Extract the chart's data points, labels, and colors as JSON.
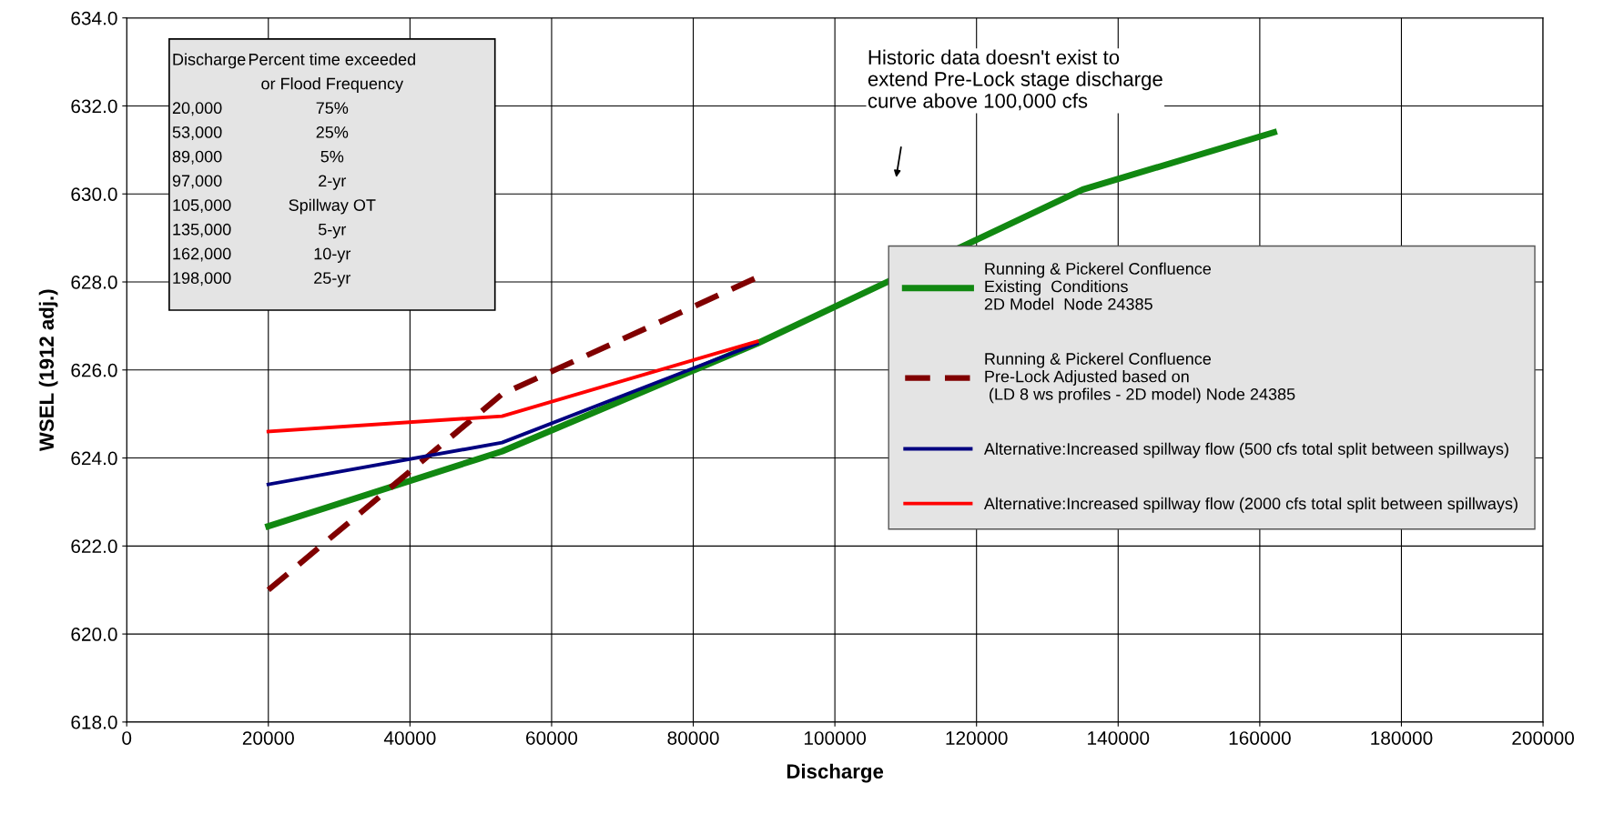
{
  "chart_data": {
    "type": "line",
    "xlabel": "Discharge",
    "ylabel": "WSEL (1912 adj.)",
    "xlim": [
      0,
      200000
    ],
    "xticks": [
      0,
      20000,
      40000,
      60000,
      80000,
      100000,
      120000,
      140000,
      160000,
      180000,
      200000
    ],
    "ylim": [
      618,
      634
    ],
    "yticks": [
      {
        "value": 618,
        "label": "618.0"
      },
      {
        "value": 620,
        "label": "620.0"
      },
      {
        "value": 622,
        "label": "622.0"
      },
      {
        "value": 624,
        "label": "624.0"
      },
      {
        "value": 626,
        "label": "626.0"
      },
      {
        "value": 628,
        "label": "628.0"
      },
      {
        "value": 630,
        "label": "630.0"
      },
      {
        "value": 632,
        "label": "632.0"
      },
      {
        "value": 634,
        "label": "634.0"
      }
    ],
    "grid": true,
    "legend": "right",
    "marker": "none",
    "series": [
      {
        "name": "Running & Pickerel Confluence\nExisting  Conditions\n2D Model  Node 24385",
        "color": "#118811",
        "line_style": "solid",
        "x": [
          20000,
          53000,
          89000,
          135000,
          162000
        ],
        "values": [
          622.45,
          624.15,
          626.6,
          630.1,
          631.4
        ]
      },
      {
        "name": "Running & Pickerel Confluence\nPre-Lock Adjusted based on\n (LD 8 ws profiles - 2D model) Node 24385",
        "color": "#800000",
        "line_style": "dashed",
        "x": [
          20000,
          53000,
          89000
        ],
        "values": [
          621.0,
          625.45,
          628.1
        ]
      },
      {
        "name": "Alternative:Increased spillway flow (500 cfs total split between spillways)",
        "color": "#000080",
        "line_style": "solid",
        "x": [
          20000,
          53000,
          89000
        ],
        "values": [
          623.4,
          624.35,
          626.6
        ]
      },
      {
        "name": "Alternative:Increased spillway flow (2000 cfs total split between spillways)",
        "color": "#ff0000",
        "line_style": "solid",
        "x": [
          20000,
          53000,
          89000
        ],
        "values": [
          624.6,
          624.95,
          626.65
        ]
      }
    ],
    "annotations": [
      "Discharge\tPercent time exceeded\n\tor Flood Frequency\n20,000\t75%\n53,000\t25%\n89,000\t5%\n97,000\t2-yr\n105,000\tSpillway OT\n135,000\t5-yr\n162,000\t10-yr\n198,000\t25-yr",
      "Historic data doesn't exist to\nextend Pre-Lock stage discharge\ncurve above 100,000 cfs"
    ]
  }
}
